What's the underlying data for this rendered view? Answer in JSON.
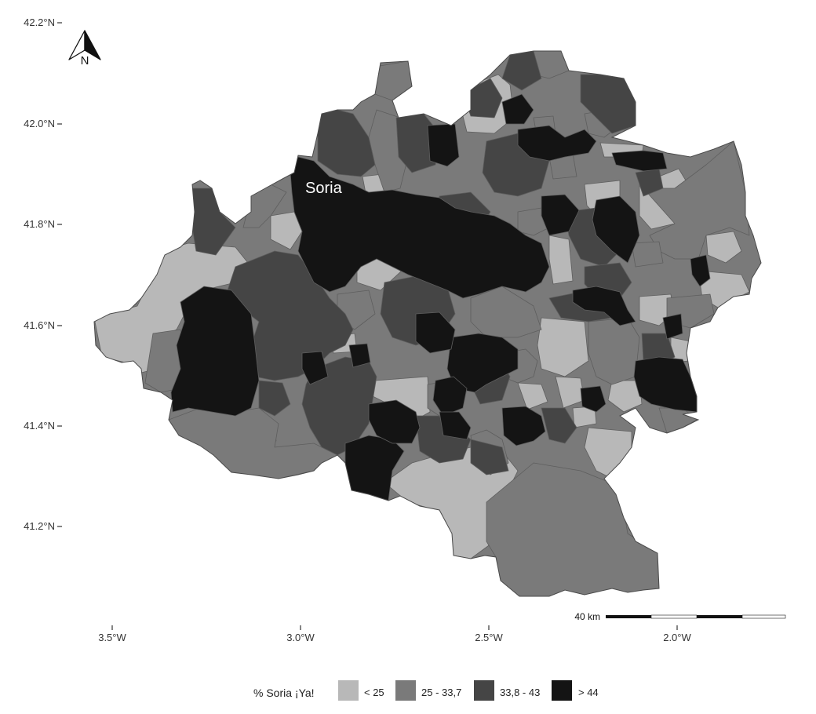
{
  "map": {
    "city_label": "Soria",
    "latitude_ticks": [
      "42.2°N",
      "42.0°N",
      "41.8°N",
      "41.6°N",
      "41.4°N",
      "41.2°N"
    ],
    "longitude_ticks": [
      "3.5°W",
      "3.0°W",
      "2.5°W",
      "2.0°W"
    ],
    "north_arrow_letter": "N",
    "scale_bar_label": "40 km"
  },
  "legend": {
    "title": "% Soria ¡Ya!",
    "items": [
      {
        "label": "< 25",
        "color": "#b8b8b8"
      },
      {
        "label": "25 - 33,7",
        "color": "#7a7a7a"
      },
      {
        "label": "33,8 - 43",
        "color": "#454545"
      },
      {
        "label": "> 44",
        "color": "#141414"
      }
    ]
  },
  "colors": {
    "class_lt25": "#b8b8b8",
    "class_25_337": "#7a7a7a",
    "class_338_43": "#454545",
    "class_gt44": "#141414",
    "border": "#5a5a5a"
  }
}
